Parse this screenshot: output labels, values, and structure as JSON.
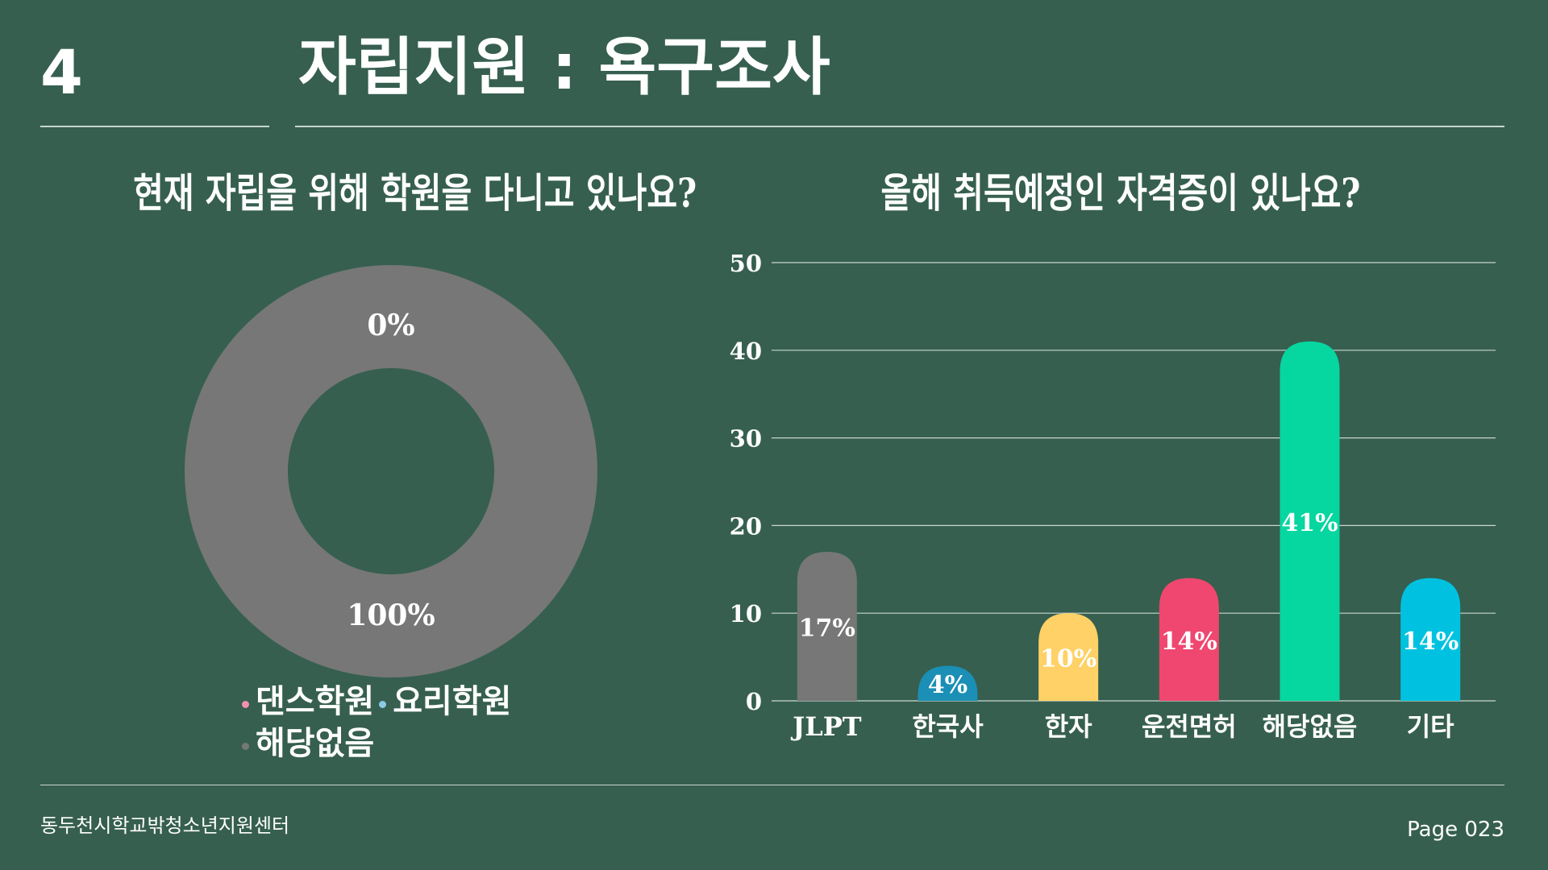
{
  "header": {
    "slide_number": "4",
    "title": "자립지원 : 욕구조사"
  },
  "footer": {
    "organization": "동두천시학교밖청소년지원센터",
    "page": "Page 023"
  },
  "chart_data": [
    {
      "type": "pie",
      "variant": "donut",
      "title": "현재 자립을 위해 학원을 다니고 있나요?",
      "categories": [
        "댄스학원",
        "요리학원",
        "해당없음"
      ],
      "values": [
        0,
        0,
        100
      ],
      "data_labels": [
        "0%",
        "0%",
        "100%"
      ],
      "colors": [
        "#f48fb1",
        "#8ecae6",
        "#777777"
      ],
      "legend": "bottom"
    },
    {
      "type": "bar",
      "title": "올해 취득예정인 자격증이 있나요?",
      "categories": [
        "JLPT",
        "한국사",
        "한자",
        "운전면허",
        "해당없음",
        "기타"
      ],
      "values": [
        17,
        4,
        10,
        14,
        41,
        14
      ],
      "data_labels": [
        "17%",
        "4%",
        "10%",
        "14%",
        "41%",
        "14%"
      ],
      "colors": [
        "#777777",
        "#1b8fb5",
        "#ffd166",
        "#ef476f",
        "#06d6a0",
        "#00c2e0"
      ],
      "ylim": [
        0,
        50
      ],
      "yticks": [
        0,
        10,
        20,
        30,
        40,
        50
      ],
      "xlabel": "",
      "ylabel": "",
      "grid": true,
      "legend": "none"
    }
  ]
}
